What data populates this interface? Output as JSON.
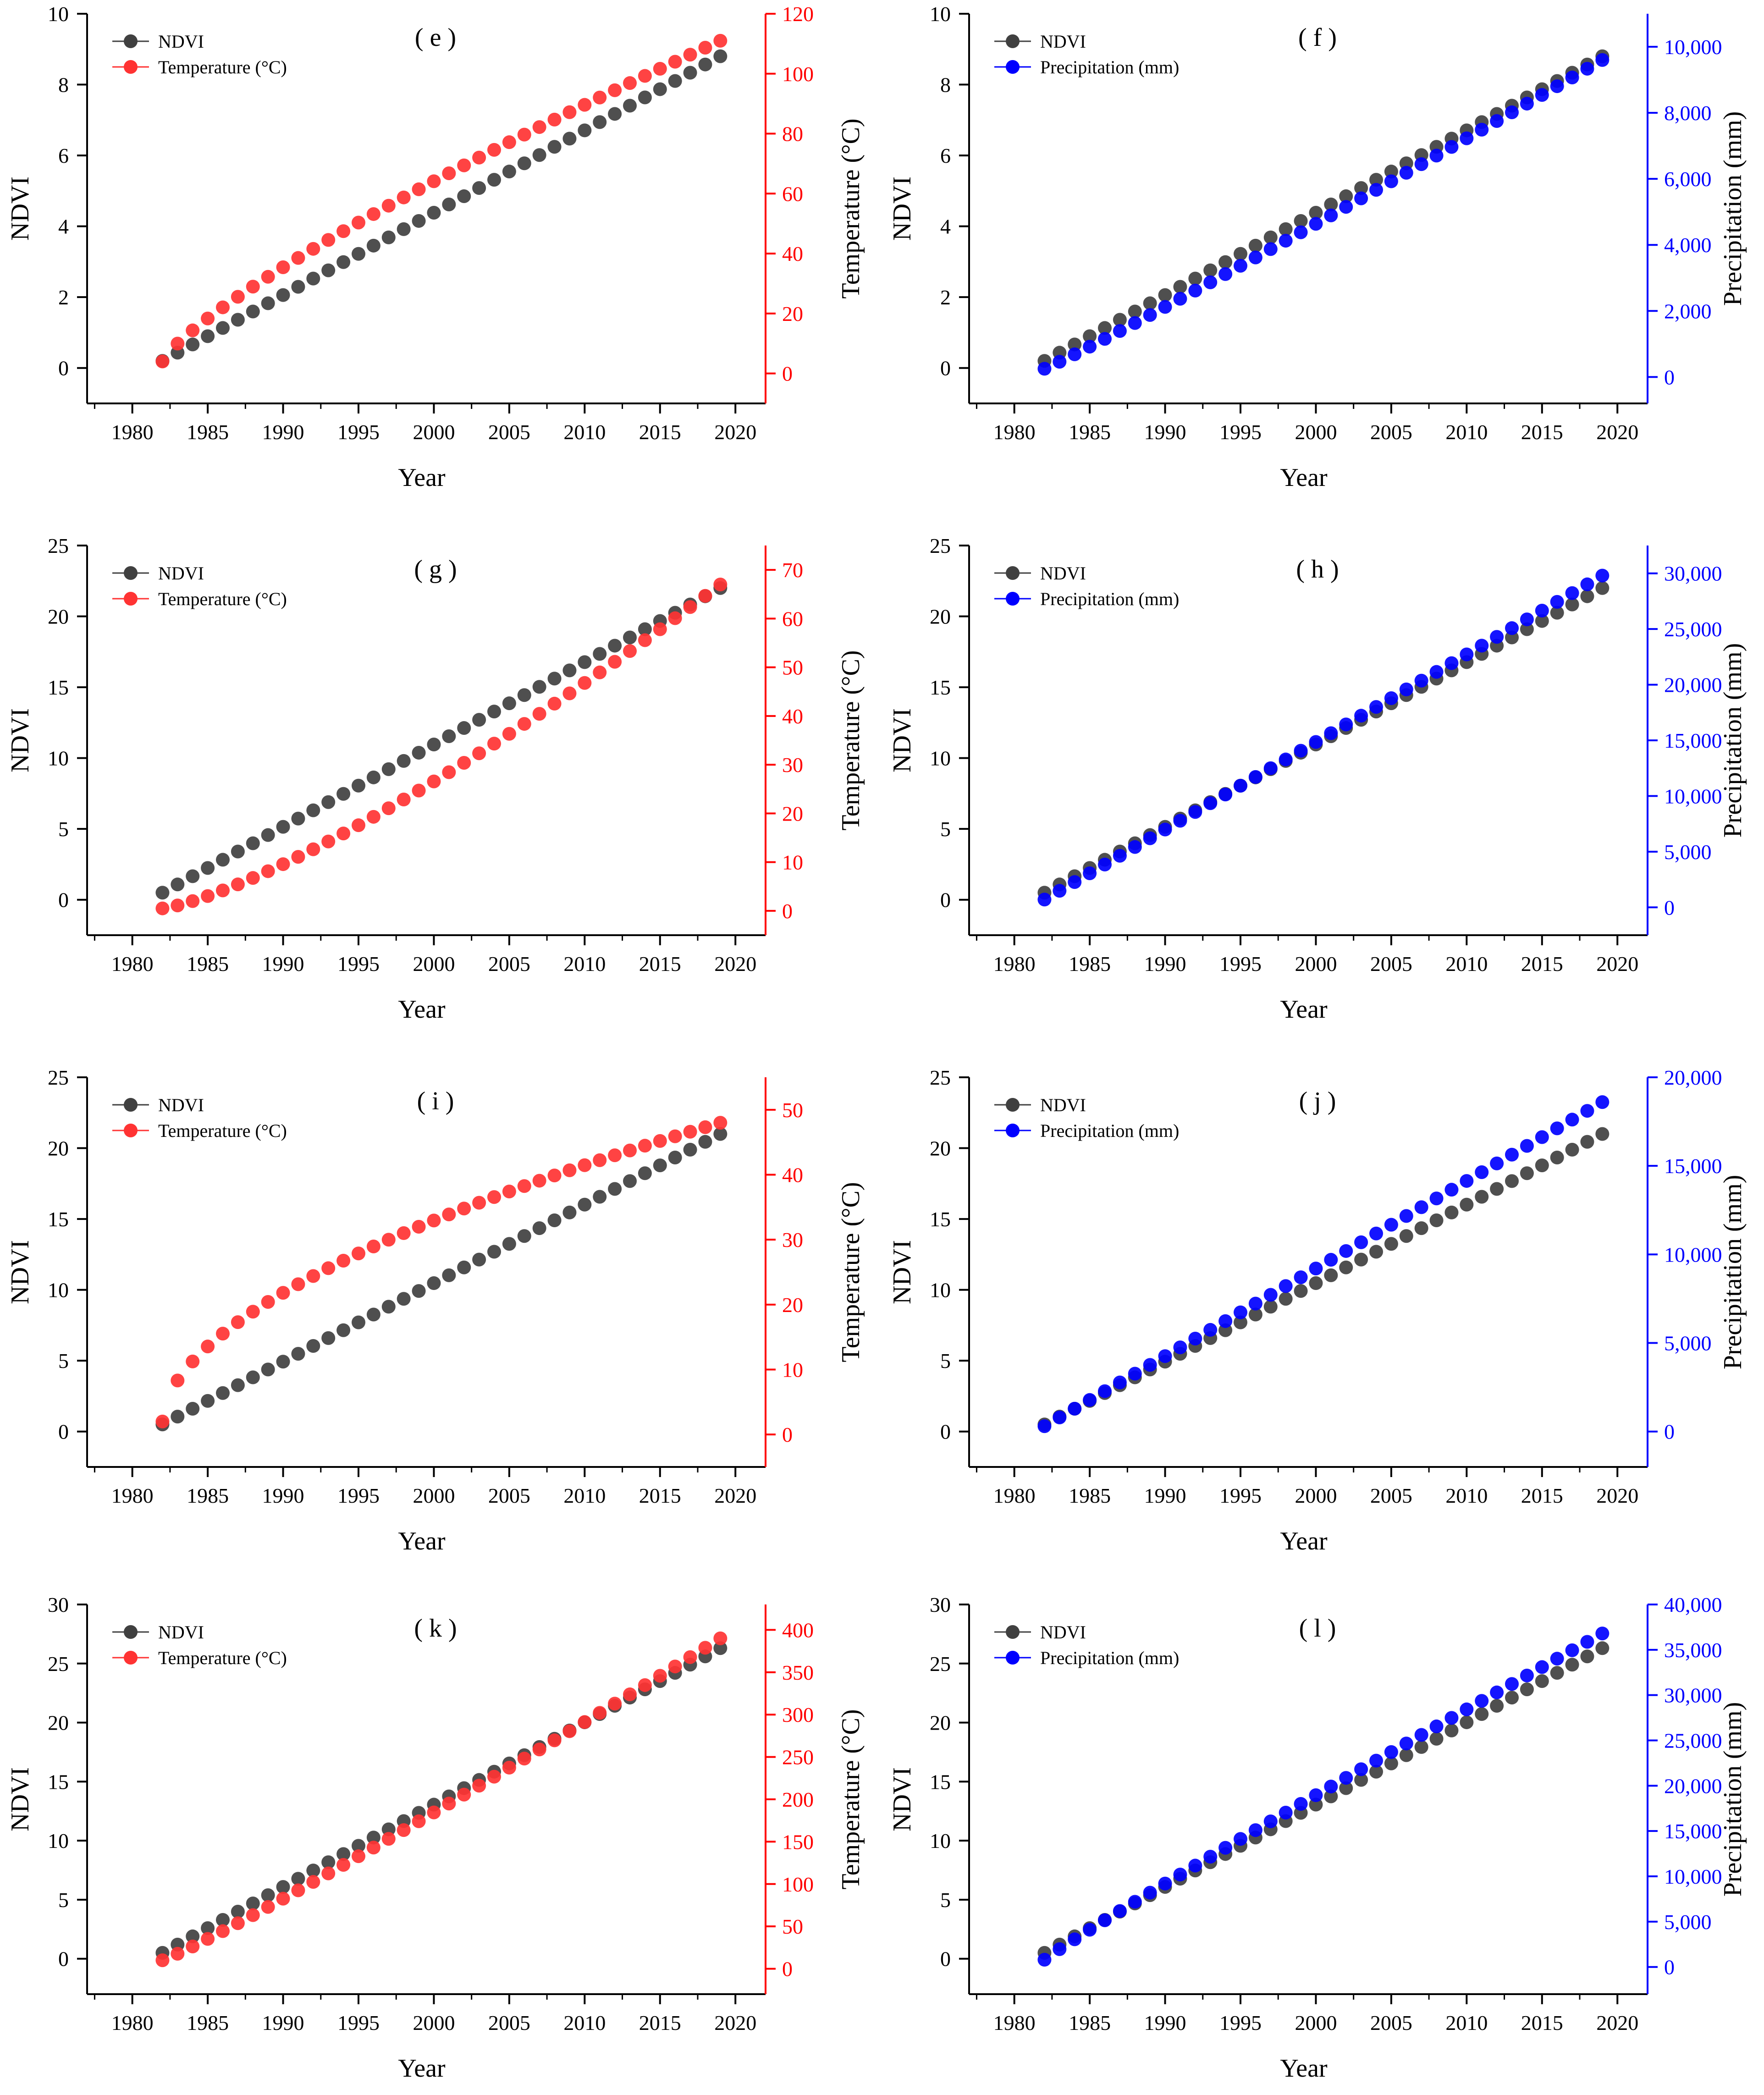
{
  "chart_data": [
    {
      "type": "scatter",
      "panel": "(e)",
      "title": "( e )",
      "xlabel": "Year",
      "ylabel": "NDVI",
      "y2label": "Temperature (°C)",
      "xlim": [
        1977,
        2022
      ],
      "ylim": [
        -1,
        10
      ],
      "y2lim": [
        -10,
        120
      ],
      "xticks": [
        1980,
        1985,
        1990,
        1995,
        2000,
        2005,
        2010,
        2015,
        2020
      ],
      "yticks": [
        0,
        2,
        4,
        6,
        8,
        10
      ],
      "y2ticks": [
        0,
        20,
        40,
        60,
        80,
        100,
        120
      ],
      "y2color": "#ff0000",
      "legend_position": "top-left",
      "series": [
        {
          "name": "NDVI",
          "axis": "left",
          "color": "#404040",
          "start": 0.2,
          "end": 8.8,
          "curve": 1.0
        },
        {
          "name": "Temperature (°C)",
          "axis": "right",
          "color": "#ff3333",
          "start": 4,
          "end": 111,
          "curve": 0.8
        }
      ]
    },
    {
      "type": "scatter",
      "panel": "(f)",
      "title": "( f )",
      "xlabel": "Year",
      "ylabel": "NDVI",
      "y2label": "Precipitation (mm)",
      "xlim": [
        1977,
        2022
      ],
      "ylim": [
        -1,
        10
      ],
      "y2lim": [
        -800,
        11000
      ],
      "xticks": [
        1980,
        1985,
        1990,
        1995,
        2000,
        2005,
        2010,
        2015,
        2020
      ],
      "yticks": [
        0,
        2,
        4,
        6,
        8,
        10
      ],
      "y2ticks": [
        0,
        2000,
        4000,
        6000,
        8000,
        10000
      ],
      "y2ticklabels": [
        "0",
        "2,000",
        "4,000",
        "6,000",
        "8,000",
        "10,000"
      ],
      "y2color": "#0000ff",
      "legend_position": "top-left",
      "series": [
        {
          "name": "NDVI",
          "axis": "left",
          "color": "#404040",
          "start": 0.2,
          "end": 8.8,
          "curve": 1.0
        },
        {
          "name": "Precipitation (mm)",
          "axis": "right",
          "color": "#0000ff",
          "start": 250,
          "end": 9600,
          "curve": 1.05
        }
      ]
    },
    {
      "type": "scatter",
      "panel": "(g)",
      "title": "( g )",
      "xlabel": "Year",
      "ylabel": "NDVI",
      "y2label": "Temperature (°C)",
      "xlim": [
        1977,
        2022
      ],
      "ylim": [
        -2.5,
        25
      ],
      "y2lim": [
        -5,
        75
      ],
      "xticks": [
        1980,
        1985,
        1990,
        1995,
        2000,
        2005,
        2010,
        2015,
        2020
      ],
      "yticks": [
        0,
        5,
        10,
        15,
        20,
        25
      ],
      "y2ticks": [
        0,
        10,
        20,
        30,
        40,
        50,
        60,
        70
      ],
      "y2color": "#ff0000",
      "legend_position": "top-left",
      "series": [
        {
          "name": "NDVI",
          "axis": "left",
          "color": "#404040",
          "start": 0.5,
          "end": 22.0,
          "curve": 1.0
        },
        {
          "name": "Temperature (°C)",
          "axis": "right",
          "color": "#ff3333",
          "start": 0.5,
          "end": 67,
          "curve": 1.3
        }
      ]
    },
    {
      "type": "scatter",
      "panel": "(h)",
      "title": "( h )",
      "xlabel": "Year",
      "ylabel": "NDVI",
      "y2label": "Precipitation (mm)",
      "xlim": [
        1977,
        2022
      ],
      "ylim": [
        -2.5,
        25
      ],
      "y2lim": [
        -2500,
        32500
      ],
      "xticks": [
        1980,
        1985,
        1990,
        1995,
        2000,
        2005,
        2010,
        2015,
        2020
      ],
      "yticks": [
        0,
        5,
        10,
        15,
        20,
        25
      ],
      "y2ticks": [
        0,
        5000,
        10000,
        15000,
        20000,
        25000,
        30000
      ],
      "y2ticklabels": [
        "0",
        "5,000",
        "10,000",
        "15,000",
        "20,000",
        "25,000",
        "30,000"
      ],
      "y2color": "#0000ff",
      "legend_position": "top-left",
      "series": [
        {
          "name": "NDVI",
          "axis": "left",
          "color": "#404040",
          "start": 0.5,
          "end": 22.0,
          "curve": 1.0
        },
        {
          "name": "Precipitation (mm)",
          "axis": "right",
          "color": "#0000ff",
          "start": 700,
          "end": 29800,
          "curve": 1.0
        }
      ]
    },
    {
      "type": "scatter",
      "panel": "(i)",
      "title": "( i )",
      "xlabel": "Year",
      "ylabel": "NDVI",
      "y2label": "Temperature (°C)",
      "xlim": [
        1977,
        2022
      ],
      "ylim": [
        -2.5,
        25
      ],
      "y2lim": [
        -5,
        55
      ],
      "xticks": [
        1980,
        1985,
        1990,
        1995,
        2000,
        2005,
        2010,
        2015,
        2020
      ],
      "yticks": [
        0,
        5,
        10,
        15,
        20,
        25
      ],
      "y2ticks": [
        0,
        10,
        20,
        30,
        40,
        50
      ],
      "y2color": "#ff0000",
      "legend_position": "top-left",
      "series": [
        {
          "name": "NDVI",
          "axis": "left",
          "color": "#404040",
          "start": 0.5,
          "end": 21.0,
          "curve": 1.0
        },
        {
          "name": "Temperature (°C)",
          "axis": "right",
          "color": "#ff3333",
          "start": 2,
          "end": 48,
          "curve": 0.55
        }
      ]
    },
    {
      "type": "scatter",
      "panel": "(j)",
      "title": "( j )",
      "xlabel": "Year",
      "ylabel": "NDVI",
      "y2label": "Precipitation (mm)",
      "xlim": [
        1977,
        2022
      ],
      "ylim": [
        -2.5,
        25
      ],
      "y2lim": [
        -2000,
        20000
      ],
      "xticks": [
        1980,
        1985,
        1990,
        1995,
        2000,
        2005,
        2010,
        2015,
        2020
      ],
      "yticks": [
        0,
        5,
        10,
        15,
        20,
        25
      ],
      "y2ticks": [
        0,
        5000,
        10000,
        15000,
        20000
      ],
      "y2ticklabels": [
        "0",
        "5,000",
        "10,000",
        "15,000",
        "20,000"
      ],
      "y2color": "#0000ff",
      "legend_position": "top-left",
      "series": [
        {
          "name": "NDVI",
          "axis": "left",
          "color": "#404040",
          "start": 0.5,
          "end": 21.0,
          "curve": 1.0
        },
        {
          "name": "Precipitation (mm)",
          "axis": "right",
          "color": "#0000ff",
          "start": 300,
          "end": 18600,
          "curve": 1.0
        }
      ]
    },
    {
      "type": "scatter",
      "panel": "(k)",
      "title": "( k )",
      "xlabel": "Year",
      "ylabel": "NDVI",
      "y2label": "Temperature (°C)",
      "xlim": [
        1977,
        2022
      ],
      "ylim": [
        -3,
        30
      ],
      "y2lim": [
        -30,
        430
      ],
      "xticks": [
        1980,
        1985,
        1990,
        1995,
        2000,
        2005,
        2010,
        2015,
        2020
      ],
      "yticks": [
        0,
        5,
        10,
        15,
        20,
        25,
        30
      ],
      "y2ticks": [
        0,
        50,
        100,
        150,
        200,
        250,
        300,
        350,
        400
      ],
      "y2color": "#ff0000",
      "legend_position": "top-left",
      "series": [
        {
          "name": "NDVI",
          "axis": "left",
          "color": "#404040",
          "start": 0.5,
          "end": 26.3,
          "curve": 1.0
        },
        {
          "name": "Temperature (°C)",
          "axis": "right",
          "color": "#ff3333",
          "start": 10,
          "end": 390,
          "curve": 1.08
        }
      ]
    },
    {
      "type": "scatter",
      "panel": "(l)",
      "title": "( l )",
      "xlabel": "Year",
      "ylabel": "NDVI",
      "y2label": "Precipitation (mm)",
      "xlim": [
        1977,
        2022
      ],
      "ylim": [
        -3,
        30
      ],
      "y2lim": [
        -3000,
        40000
      ],
      "xticks": [
        1980,
        1985,
        1990,
        1995,
        2000,
        2005,
        2010,
        2015,
        2020
      ],
      "yticks": [
        0,
        5,
        10,
        15,
        20,
        25,
        30
      ],
      "y2ticks": [
        0,
        5000,
        10000,
        15000,
        20000,
        25000,
        30000,
        35000,
        40000
      ],
      "y2ticklabels": [
        "0",
        "5,000",
        "10,000",
        "15,000",
        "20,000",
        "25,000",
        "30,000",
        "35,000",
        "40,000"
      ],
      "y2color": "#0000ff",
      "legend_position": "top-left",
      "series": [
        {
          "name": "NDVI",
          "axis": "left",
          "color": "#404040",
          "start": 0.5,
          "end": 26.3,
          "curve": 1.0
        },
        {
          "name": "Precipitation (mm)",
          "axis": "right",
          "color": "#0000ff",
          "start": 800,
          "end": 36800,
          "curve": 0.95
        }
      ]
    }
  ]
}
